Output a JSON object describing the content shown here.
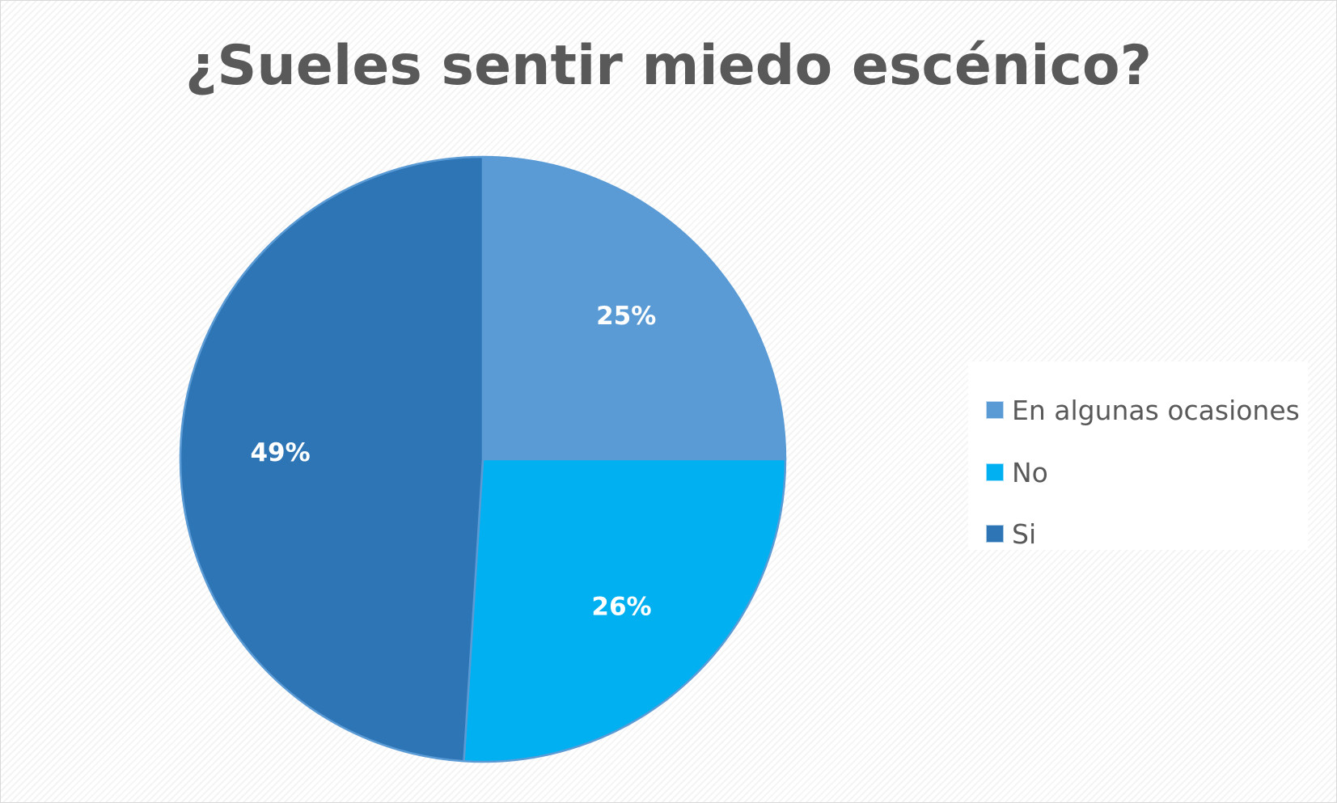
{
  "chart_data": {
    "type": "pie",
    "title": "¿Sueles sentir miedo escénico?",
    "categories": [
      "En algunas ocasiones",
      "No",
      "Si"
    ],
    "values": [
      25,
      26,
      49
    ],
    "labels": [
      "25%",
      "26%",
      "49%"
    ],
    "colors": [
      "#5b9bd5",
      "#00b0f0",
      "#2e75b6"
    ],
    "legend_position": "right"
  }
}
